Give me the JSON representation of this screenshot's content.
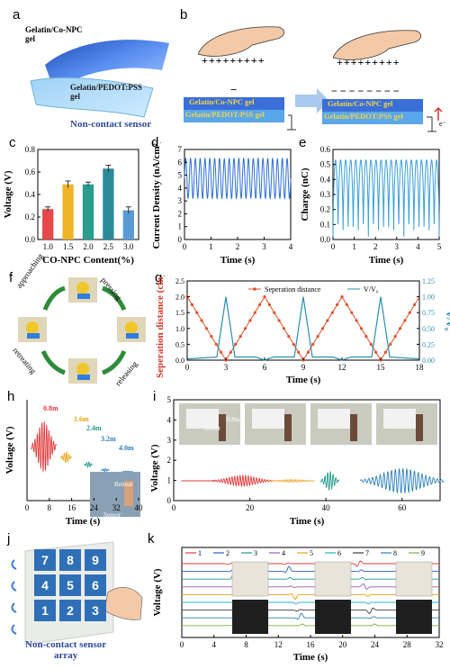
{
  "panels": {
    "a": {
      "label": "a",
      "top_layer": "Gelatin/Co-NPC\ngel",
      "bottom_layer": "Gelatin/PEDOT:PSS\ngel",
      "caption": "Non-contact sensor"
    },
    "b": {
      "label": "b",
      "plus_signs": "+++++++++",
      "minus_small": "−",
      "minus_row": "− − − − − − − −",
      "gel_top": "Gelatin/Co-NPC gel",
      "gel_bottom": "Gelatin/PEDOT:PSS gel",
      "electron": "e⁻"
    },
    "c": {
      "label": "c"
    },
    "d": {
      "label": "d"
    },
    "e": {
      "label": "e"
    },
    "f": {
      "label": "f",
      "steps": [
        "approaching",
        "pressing",
        "releasing",
        "retreating"
      ]
    },
    "g": {
      "label": "g"
    },
    "h": {
      "label": "h",
      "distance_labels": [
        "0.8m",
        "1.6m",
        "2.4m",
        "3.2m",
        "4.0m"
      ],
      "photo_text": [
        "Retreat",
        "Sensor"
      ]
    },
    "i": {
      "label": "i",
      "photo_text": [
        "Sensor",
        "0.8m"
      ]
    },
    "j": {
      "label": "j",
      "keys": [
        "7",
        "8",
        "9",
        "4",
        "5",
        "6",
        "1",
        "2",
        "3"
      ],
      "caption": "Non-contact sensor\narray"
    },
    "k": {
      "label": "k"
    }
  },
  "chart_data": [
    {
      "id": "c",
      "type": "bar",
      "categories": [
        "1.0",
        "1.5",
        "2.0",
        "2.5",
        "3.0"
      ],
      "values": [
        0.27,
        0.49,
        0.49,
        0.63,
        0.26
      ],
      "errors": [
        0.02,
        0.03,
        0.02,
        0.03,
        0.03
      ],
      "colors": [
        "#e8484a",
        "#f0b429",
        "#2a9d8f",
        "#2a8a9a",
        "#5b9bd5"
      ],
      "xlabel": "CO-NPC Content(%)",
      "ylabel": "Voltage (V)",
      "ylim": [
        0,
        0.8
      ],
      "yticks": [
        "0.0",
        "0.2",
        "0.4",
        "0.6",
        "0.8"
      ]
    },
    {
      "id": "d",
      "type": "line",
      "xlabel": "Time (s)",
      "ylabel": "Current Density (nA/cm²)",
      "xlim": [
        0,
        4
      ],
      "ylim": [
        0,
        7
      ],
      "xticks": [
        "0",
        "1",
        "2",
        "3",
        "4"
      ],
      "yticks": [
        "0",
        "1",
        "2",
        "3",
        "4",
        "5",
        "6",
        "7"
      ],
      "cycles": 22,
      "high": 6.3,
      "low": 3.2,
      "color": "#2f6fd6"
    },
    {
      "id": "e",
      "type": "line",
      "xlabel": "Time (s)",
      "ylabel": "Charge (nC)",
      "xlim": [
        0,
        5
      ],
      "ylim": [
        0,
        0.6
      ],
      "xticks": [
        "0",
        "1",
        "2",
        "3",
        "4",
        "5"
      ],
      "yticks": [
        "0.0",
        "0.1",
        "0.2",
        "0.3",
        "0.4",
        "0.5",
        "0.6"
      ],
      "cycles": 21,
      "high": 0.53,
      "low": 0.02,
      "color": "#3aa0dc"
    },
    {
      "id": "g",
      "type": "line",
      "xlabel": "Time (s)",
      "ylabel_left": "Seperation distance (cm)",
      "ylabel_right": "V/V₀",
      "xlim": [
        0,
        18
      ],
      "ylim_left": [
        0,
        2.5
      ],
      "ylim_right": [
        0,
        1.25
      ],
      "xticks": [
        "0",
        "3",
        "6",
        "9",
        "12",
        "15",
        "18"
      ],
      "yticks_left": [
        "0.0",
        "0.5",
        "1.0",
        "1.5",
        "2.0",
        "2.5"
      ],
      "yticks_right": [
        "0.00",
        "0.25",
        "0.50",
        "0.75",
        "1.00",
        "1.25"
      ],
      "series": [
        {
          "name": "Seperation distance",
          "color": "#e0522c",
          "x": [
            0,
            3,
            6,
            9,
            12,
            15,
            18
          ],
          "y": [
            2.0,
            0.0,
            2.0,
            0.0,
            2.0,
            0.0,
            2.0
          ]
        },
        {
          "name": "V/V₀",
          "color": "#2a8fb0",
          "x": [
            0,
            2.3,
            3,
            3.7,
            5.3,
            6,
            6.7,
            8.3,
            9,
            9.7,
            11.3,
            12,
            12.7,
            14.3,
            15,
            15.7,
            18
          ],
          "y": [
            0.02,
            0.05,
            1.0,
            0.05,
            0.05,
            0.0,
            0.05,
            0.05,
            1.0,
            0.05,
            0.05,
            0.0,
            0.05,
            0.05,
            1.0,
            0.05,
            0.02
          ]
        }
      ]
    },
    {
      "id": "h",
      "type": "line",
      "xlabel": "Time (s)",
      "ylabel": "Voltage (V)",
      "xlim": [
        0,
        40
      ],
      "xticks": [
        "0",
        "8",
        "16",
        "24",
        "32",
        "40"
      ],
      "colors": [
        "#e23b3b",
        "#e8a317",
        "#1f9b8c",
        "#2e7fbf",
        "#2e7fbf"
      ]
    },
    {
      "id": "i",
      "type": "line",
      "xlabel": "Time (s)",
      "ylabel": "Voltage (V)",
      "xlim": [
        0,
        70
      ],
      "ylim": [
        0,
        5
      ],
      "xticks": [
        "0",
        "20",
        "40",
        "60"
      ],
      "yticks": [
        "0",
        "1",
        "2",
        "3",
        "4",
        "5"
      ],
      "colors": [
        "#e23b3b",
        "#e8a317",
        "#1f9b8c",
        "#2e7fbf"
      ]
    },
    {
      "id": "k",
      "type": "line",
      "xlabel": "Time (s)",
      "ylabel": "Voltage (V)",
      "xlim": [
        0,
        32
      ],
      "xticks": [
        "0",
        "4",
        "8",
        "12",
        "16",
        "20",
        "24",
        "28",
        "32"
      ],
      "series_names": [
        "1",
        "2",
        "3",
        "4",
        "5",
        "6",
        "7",
        "8",
        "9"
      ],
      "colors": [
        "#e23b3b",
        "#2e5fbf",
        "#1f9b8c",
        "#9c59c9",
        "#e8a317",
        "#2ab0c8",
        "#404040",
        "#2e7fbf",
        "#7bb33a"
      ]
    }
  ]
}
